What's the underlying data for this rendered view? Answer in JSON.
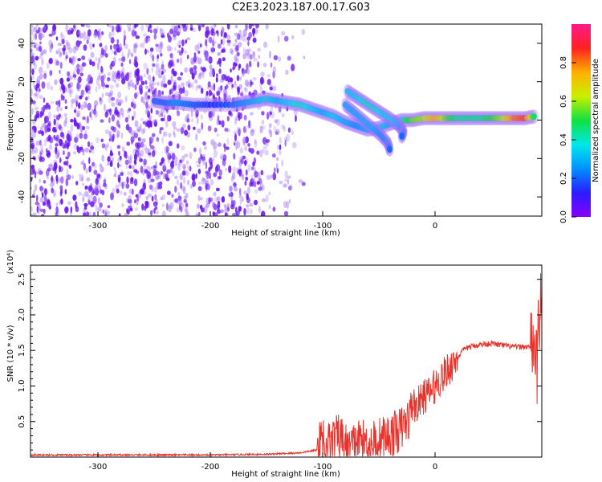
{
  "title": "C2E3.2023.187.00.17.G03",
  "colors": {
    "snr_line": "#e8322b",
    "blob_low": "#a070ff",
    "blob_mid": "#6a14f0",
    "blob_high": "#00d0e0",
    "colormap": [
      "#8a00ff",
      "#2b1cff",
      "#0090ff",
      "#00e8e8",
      "#10e040",
      "#c8f000",
      "#ffb000",
      "#ff2020",
      "#ff1a8c"
    ]
  },
  "chart_data": [
    {
      "type": "heatmap",
      "title": "C2E3.2023.187.00.17.G03",
      "xlabel": "Height of straight line (km)",
      "ylabel": "Frequency (Hz)",
      "xlim": [
        -360,
        95
      ],
      "ylim": [
        -50,
        50
      ],
      "x_ticks": [
        -300,
        -200,
        -100,
        0
      ],
      "y_ticks": [
        -40,
        -20,
        0,
        20,
        40
      ],
      "colorbar": {
        "label": "Normalized spectral amplitude",
        "range": [
          0,
          1
        ],
        "ticks": [
          "0.0",
          "0.2",
          "0.4",
          "0.6",
          "0.8"
        ]
      },
      "noise_region": {
        "x_range": [
          -360,
          -125
        ],
        "y_range": [
          -50,
          50
        ]
      },
      "ridge_main": [
        {
          "x": -250,
          "y": 10,
          "amp": 0.2
        },
        {
          "x": -240,
          "y": 9,
          "amp": 0.2
        },
        {
          "x": -230,
          "y": 9,
          "amp": 0.25
        },
        {
          "x": -215,
          "y": 8,
          "amp": 0.2
        },
        {
          "x": -200,
          "y": 8,
          "amp": 0.15
        },
        {
          "x": -180,
          "y": 8,
          "amp": 0.2
        },
        {
          "x": -170,
          "y": 9,
          "amp": 0.25
        },
        {
          "x": -160,
          "y": 10,
          "amp": 0.3
        },
        {
          "x": -150,
          "y": 11,
          "amp": 0.35
        },
        {
          "x": -140,
          "y": 10,
          "amp": 0.3
        },
        {
          "x": -130,
          "y": 9,
          "amp": 0.35
        },
        {
          "x": -120,
          "y": 8,
          "amp": 0.4
        },
        {
          "x": -110,
          "y": 6,
          "amp": 0.35
        },
        {
          "x": -100,
          "y": 4,
          "amp": 0.3
        },
        {
          "x": -90,
          "y": 2,
          "amp": 0.35
        },
        {
          "x": -80,
          "y": -1,
          "amp": 0.3
        },
        {
          "x": -70,
          "y": -3,
          "amp": 0.25
        },
        {
          "x": -60,
          "y": -5,
          "amp": 0.3
        },
        {
          "x": -50,
          "y": -4,
          "amp": 0.35
        },
        {
          "x": -40,
          "y": -2,
          "amp": 0.3
        },
        {
          "x": -30,
          "y": 0,
          "amp": 0.4
        },
        {
          "x": -20,
          "y": 0,
          "amp": 0.55
        },
        {
          "x": -10,
          "y": 1,
          "amp": 0.6
        },
        {
          "x": 0,
          "y": 1,
          "amp": 0.75
        },
        {
          "x": 10,
          "y": 1,
          "amp": 0.55
        },
        {
          "x": 20,
          "y": 1,
          "amp": 0.45
        },
        {
          "x": 30,
          "y": 1,
          "amp": 0.45
        },
        {
          "x": 40,
          "y": 1,
          "amp": 0.45
        },
        {
          "x": 50,
          "y": 1,
          "amp": 0.5
        },
        {
          "x": 60,
          "y": 1,
          "amp": 0.6
        },
        {
          "x": 70,
          "y": 1,
          "amp": 0.8
        },
        {
          "x": 80,
          "y": 1,
          "amp": 0.85
        },
        {
          "x": 90,
          "y": 2,
          "amp": 0.4
        }
      ],
      "ridge_upper": [
        {
          "x": -78,
          "y": 15,
          "amp": 0.35
        },
        {
          "x": -70,
          "y": 12,
          "amp": 0.35
        },
        {
          "x": -62,
          "y": 9,
          "amp": 0.4
        },
        {
          "x": -54,
          "y": 6,
          "amp": 0.4
        },
        {
          "x": -46,
          "y": 3,
          "amp": 0.35
        },
        {
          "x": -38,
          "y": 0,
          "amp": 0.35
        },
        {
          "x": -32,
          "y": -3,
          "amp": 0.3
        },
        {
          "x": -28,
          "y": -6,
          "amp": 0.25
        },
        {
          "x": -30,
          "y": -9,
          "amp": 0.2
        }
      ],
      "ridge_lower": [
        {
          "x": -80,
          "y": 8,
          "amp": 0.3
        },
        {
          "x": -72,
          "y": 4,
          "amp": 0.3
        },
        {
          "x": -64,
          "y": 0,
          "amp": 0.3
        },
        {
          "x": -56,
          "y": -4,
          "amp": 0.3
        },
        {
          "x": -48,
          "y": -8,
          "amp": 0.25
        },
        {
          "x": -42,
          "y": -12,
          "amp": 0.25
        },
        {
          "x": -40,
          "y": -16,
          "amp": 0.2
        }
      ]
    },
    {
      "type": "line",
      "xlabel": "Height of straight line (km)",
      "ylabel": "SNR (10 * v/v)",
      "y_multiplier": "(x10⁴)",
      "xlim": [
        -360,
        95
      ],
      "ylim": [
        0,
        2.7
      ],
      "x_ticks": [
        -300,
        -200,
        -100,
        0
      ],
      "y_ticks": [
        "0.5",
        "1.0",
        "1.5",
        "2.0",
        "2.5"
      ],
      "series": [
        {
          "x": [
            -360,
            -300,
            -200,
            -150,
            -120,
            -105,
            -100,
            -95,
            -90,
            -85,
            -80,
            -75,
            -70,
            -65,
            -60,
            -55,
            -50,
            -45,
            -40,
            -35,
            -30,
            -25,
            -22,
            -20,
            -18,
            -15,
            -10,
            -5,
            0,
            5,
            10,
            15,
            20,
            25,
            30,
            40,
            50,
            60,
            70,
            80,
            85,
            88,
            90,
            91,
            92,
            93,
            94,
            95
          ],
          "y": [
            0.03,
            0.03,
            0.03,
            0.04,
            0.06,
            0.1,
            0.3,
            0.2,
            0.25,
            0.3,
            0.2,
            0.15,
            0.2,
            0.25,
            0.2,
            0.22,
            0.25,
            0.28,
            0.3,
            0.35,
            0.4,
            0.5,
            0.6,
            0.8,
            0.7,
            0.75,
            0.85,
            0.9,
            1.0,
            1.1,
            1.2,
            1.3,
            1.4,
            1.5,
            1.55,
            1.58,
            1.6,
            1.57,
            1.55,
            1.55,
            1.55,
            1.58,
            1.5,
            1.0,
            2.4,
            1.8,
            2.6,
            1.6
          ]
        }
      ]
    }
  ]
}
